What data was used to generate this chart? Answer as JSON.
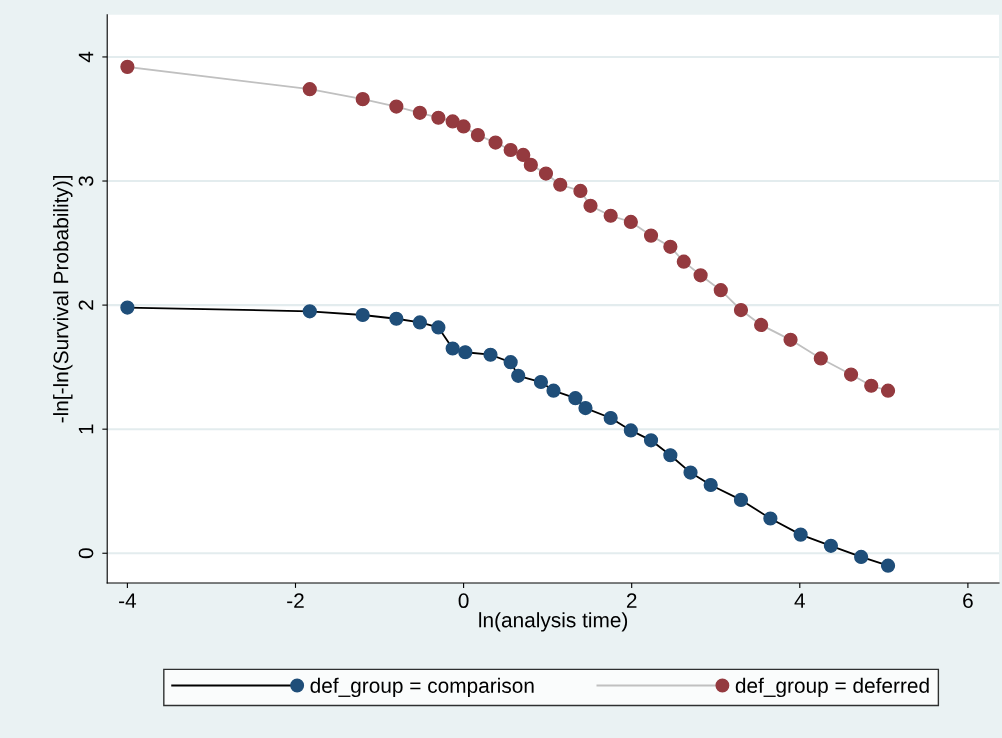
{
  "chart_data": {
    "type": "line",
    "xlabel": "ln(analysis time)",
    "ylabel": "-ln[-ln(Survival Probability)]",
    "xlim": [
      -4.24,
      6.37
    ],
    "ylim": [
      -0.24,
      4.34
    ],
    "xticks": [
      -4,
      -2,
      0,
      2,
      4,
      6
    ],
    "yticks": [
      0,
      1,
      2,
      3,
      4
    ],
    "grid": "y",
    "legend": "bottom",
    "marker": "circle",
    "line_style": "solid",
    "series": [
      {
        "name": "def_group = comparison",
        "color": "#1f4e79",
        "x": [
          -4,
          -1.83,
          -1.2,
          -0.8,
          -0.52,
          -0.3,
          -0.13,
          0.02,
          0.32,
          0.56,
          0.65,
          0.92,
          1.07,
          1.33,
          1.45,
          1.75,
          1.99,
          2.23,
          2.46,
          2.7,
          2.94,
          3.3,
          3.65,
          4.01,
          4.37,
          4.73,
          5.05
        ],
        "values": [
          1.98,
          1.95,
          1.92,
          1.89,
          1.86,
          1.82,
          1.65,
          1.62,
          1.6,
          1.54,
          1.43,
          1.38,
          1.31,
          1.25,
          1.17,
          1.09,
          0.99,
          0.91,
          0.79,
          0.65,
          0.55,
          0.43,
          0.28,
          0.15,
          0.06,
          -0.03,
          -0.1
        ]
      },
      {
        "name": "def_group = deferred",
        "color": "#943a3f",
        "x": [
          -4,
          -1.83,
          -1.2,
          -0.8,
          -0.52,
          -0.3,
          -0.13,
          0,
          0.17,
          0.38,
          0.56,
          0.71,
          0.8,
          0.98,
          1.15,
          1.39,
          1.51,
          1.75,
          1.99,
          2.23,
          2.46,
          2.62,
          2.82,
          3.06,
          3.3,
          3.54,
          3.89,
          4.25,
          4.61,
          4.85,
          5.05
        ],
        "values": [
          3.92,
          3.74,
          3.66,
          3.6,
          3.55,
          3.51,
          3.48,
          3.44,
          3.37,
          3.31,
          3.25,
          3.21,
          3.13,
          3.06,
          2.97,
          2.92,
          2.8,
          2.72,
          2.67,
          2.56,
          2.47,
          2.35,
          2.24,
          2.12,
          1.96,
          1.84,
          1.72,
          1.57,
          1.44,
          1.35,
          1.31
        ]
      }
    ]
  }
}
